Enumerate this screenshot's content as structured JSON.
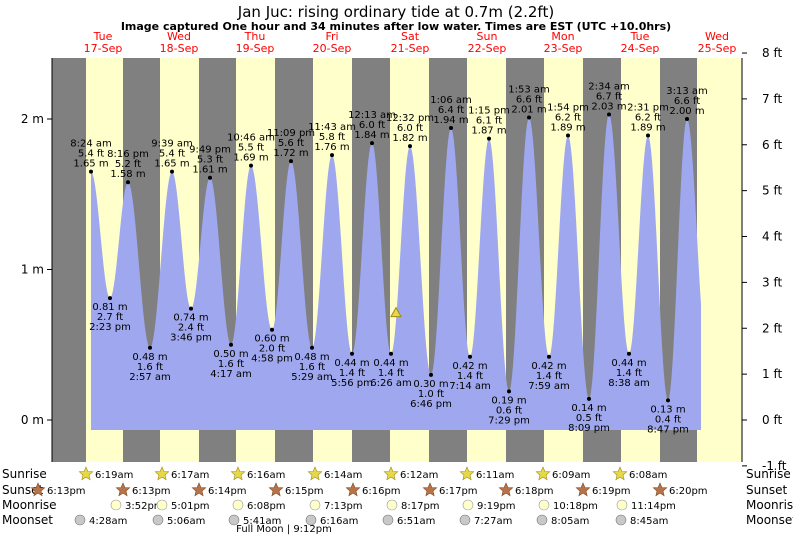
{
  "page": {
    "title": "Jan Juc: rising  ordinary tide at 0.7m (2.2ft)",
    "subtitle": "Image captured One hour and 34 minutes after low water. Times are EST (UTC +10.0hrs)"
  },
  "colors": {
    "day": "#ffffcc",
    "night": "#808080",
    "tide": "#9fa8ee",
    "sun_marker": "#e6d84a",
    "sunset_marker": "#b8734a",
    "moonrise_marker": "#ffffcc",
    "moonset_marker": "#c8c8c8",
    "day_label": "#ff0000"
  },
  "days": [
    {
      "name": "Tue",
      "date": "17-Sep"
    },
    {
      "name": "Wed",
      "date": "18-Sep"
    },
    {
      "name": "Thu",
      "date": "19-Sep"
    },
    {
      "name": "Fri",
      "date": "20-Sep"
    },
    {
      "name": "Sat",
      "date": "21-Sep"
    },
    {
      "name": "Sun",
      "date": "22-Sep"
    },
    {
      "name": "Mon",
      "date": "23-Sep"
    },
    {
      "name": "Tue",
      "date": "24-Sep"
    },
    {
      "name": "Wed",
      "date": "25-Sep"
    }
  ],
  "legend_rows": {
    "sunrise": "Sunrise",
    "sunset": "Sunset",
    "moonrise": "Moonrise",
    "moonset": "Moonset"
  },
  "sunrise": [
    "6:19am",
    "6:17am",
    "6:16am",
    "6:14am",
    "6:12am",
    "6:11am",
    "6:09am",
    "6:08am"
  ],
  "sunset": [
    "6:13pm",
    "6:13pm",
    "6:14pm",
    "6:15pm",
    "6:16pm",
    "6:17pm",
    "6:18pm",
    "6:19pm",
    "6:20pm"
  ],
  "moonrise": [
    "3:52pm",
    "5:01pm",
    "6:08pm",
    "7:13pm",
    "8:17pm",
    "9:19pm",
    "10:18pm",
    "11:14pm"
  ],
  "moonset": [
    "4:28am",
    "5:06am",
    "5:41am",
    "6:16am",
    "6:51am",
    "7:27am",
    "8:05am",
    "8:45am"
  ],
  "moon_phase": "Full Moon | 9:12pm",
  "chart_data": {
    "type": "area",
    "title": "Jan Juc: rising  ordinary tide at 0.7m (2.2ft)",
    "y_left": {
      "label": "m",
      "ticks": [
        "0 m",
        "1 m",
        "2 m"
      ],
      "range": [
        -0.3,
        2.44
      ]
    },
    "y_right": {
      "label": "ft",
      "ticks": [
        "-1 ft",
        "0 ft",
        "1 ft",
        "2 ft",
        "3 ft",
        "4 ft",
        "5 ft",
        "6 ft",
        "7 ft",
        "8 ft"
      ]
    },
    "current": {
      "label": "rising ordinary tide",
      "m": 0.7,
      "ft": 2.2
    },
    "extremes": [
      {
        "type": "high",
        "time": "8:24 am",
        "m": "1.65 m",
        "ft": "5.4 ft",
        "value": 1.65
      },
      {
        "type": "low",
        "time": "2:23 pm",
        "m": "0.81 m",
        "ft": "2.7 ft",
        "value": 0.81
      },
      {
        "type": "high",
        "time": "8:16 pm",
        "m": "1.58 m",
        "ft": "5.2 ft",
        "value": 1.58
      },
      {
        "type": "low",
        "time": "2:57 am",
        "m": "0.48 m",
        "ft": "1.6 ft",
        "value": 0.48
      },
      {
        "type": "high",
        "time": "9:39 am",
        "m": "1.65 m",
        "ft": "5.4 ft",
        "value": 1.65
      },
      {
        "type": "low",
        "time": "3:46 pm",
        "m": "0.74 m",
        "ft": "2.4 ft",
        "value": 0.74
      },
      {
        "type": "high",
        "time": "9:49 pm",
        "m": "1.61 m",
        "ft": "5.3 ft",
        "value": 1.61
      },
      {
        "type": "low",
        "time": "4:17 am",
        "m": "0.50 m",
        "ft": "1.6 ft",
        "value": 0.5
      },
      {
        "type": "high",
        "time": "10:46 am",
        "m": "1.69 m",
        "ft": "5.5 ft",
        "value": 1.69
      },
      {
        "type": "low",
        "time": "4:58 pm",
        "m": "0.60 m",
        "ft": "2.0 ft",
        "value": 0.6
      },
      {
        "type": "high",
        "time": "11:09 pm",
        "m": "1.72 m",
        "ft": "5.6 ft",
        "value": 1.72
      },
      {
        "type": "low",
        "time": "5:29 am",
        "m": "0.48 m",
        "ft": "1.6 ft",
        "value": 0.48
      },
      {
        "type": "high",
        "time": "11:43 am",
        "m": "1.76 m",
        "ft": "5.8 ft",
        "value": 1.76
      },
      {
        "type": "low",
        "time": "5:56 pm",
        "m": "0.44 m",
        "ft": "1.4 ft",
        "value": 0.44
      },
      {
        "type": "high",
        "time": "12:13 am",
        "m": "1.84 m",
        "ft": "6.0 ft",
        "value": 1.84
      },
      {
        "type": "low",
        "time": "6:26 am",
        "m": "0.44 m",
        "ft": "1.4 ft",
        "value": 0.44
      },
      {
        "type": "high",
        "time": "12:32 pm",
        "m": "1.82 m",
        "ft": "6.0 ft",
        "value": 1.82
      },
      {
        "type": "low",
        "time": "6:46 pm",
        "m": "0.30 m",
        "ft": "1.0 ft",
        "value": 0.3
      },
      {
        "type": "high",
        "time": "1:06 am",
        "m": "1.94 m",
        "ft": "6.4 ft",
        "value": 1.94
      },
      {
        "type": "low",
        "time": "7:14 am",
        "m": "0.42 m",
        "ft": "1.4 ft",
        "value": 0.42
      },
      {
        "type": "high",
        "time": "1:15 pm",
        "m": "1.87 m",
        "ft": "6.1 ft",
        "value": 1.87
      },
      {
        "type": "low",
        "time": "7:29 pm",
        "m": "0.19 m",
        "ft": "0.6 ft",
        "value": 0.19
      },
      {
        "type": "high",
        "time": "1:53 am",
        "m": "2.01 m",
        "ft": "6.6 ft",
        "value": 2.01
      },
      {
        "type": "low",
        "time": "7:59 am",
        "m": "0.42 m",
        "ft": "1.4 ft",
        "value": 0.42
      },
      {
        "type": "high",
        "time": "1:54 pm",
        "m": "1.89 m",
        "ft": "6.2 ft",
        "value": 1.89
      },
      {
        "type": "low",
        "time": "8:09 pm",
        "m": "0.14 m",
        "ft": "0.5 ft",
        "value": 0.14
      },
      {
        "type": "high",
        "time": "2:34 am",
        "m": "2.03 m",
        "ft": "6.7 ft",
        "value": 2.03
      },
      {
        "type": "low",
        "time": "8:38 am",
        "m": "0.44 m",
        "ft": "1.4 ft",
        "value": 0.44
      },
      {
        "type": "high",
        "time": "2:31 pm",
        "m": "1.89 m",
        "ft": "6.2 ft",
        "value": 1.89
      },
      {
        "type": "low",
        "time": "8:47 pm",
        "m": "0.13 m",
        "ft": "0.4 ft",
        "value": 0.13
      },
      {
        "type": "high",
        "time": "3:13 am",
        "m": "2.00 m",
        "ft": "6.6 ft",
        "value": 2.0
      }
    ]
  }
}
